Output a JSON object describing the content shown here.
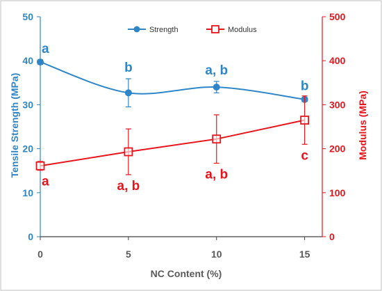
{
  "chart_data": {
    "type": "line",
    "x": [
      0,
      5,
      10,
      15
    ],
    "xlabel": "NC Content (%)",
    "x_ticks": [
      "0",
      "5",
      "10",
      "15"
    ],
    "xlim": [
      0,
      16
    ],
    "y_left_label": "Tensile Strength (MPa)",
    "y_left_lim": [
      0,
      50
    ],
    "y_left_ticks": [
      "0",
      "10",
      "20",
      "30",
      "40",
      "50"
    ],
    "y_right_label": "Modulus (MPa)",
    "y_right_lim": [
      0,
      500
    ],
    "y_right_ticks": [
      "0",
      "100",
      "200",
      "300",
      "400",
      "500"
    ],
    "grid": false,
    "legend_position": "top-center",
    "series": [
      {
        "name": "Strength",
        "axis": "left",
        "color": "#2E86C8",
        "marker": "circle-filled",
        "smooth": true,
        "values": [
          39.7,
          32.7,
          34.0,
          31.2
        ],
        "errors": [
          0.5,
          3.2,
          1.3,
          0.5
        ],
        "labels": [
          "a",
          "b",
          "a, b",
          "b"
        ]
      },
      {
        "name": "Modulus",
        "axis": "right",
        "color": "#E8141B",
        "marker": "square-open",
        "smooth": false,
        "values": [
          161,
          193,
          222,
          265
        ],
        "errors": [
          10,
          52,
          55,
          55
        ],
        "labels": [
          "a",
          "a, b",
          "a, b",
          "c"
        ]
      }
    ]
  }
}
